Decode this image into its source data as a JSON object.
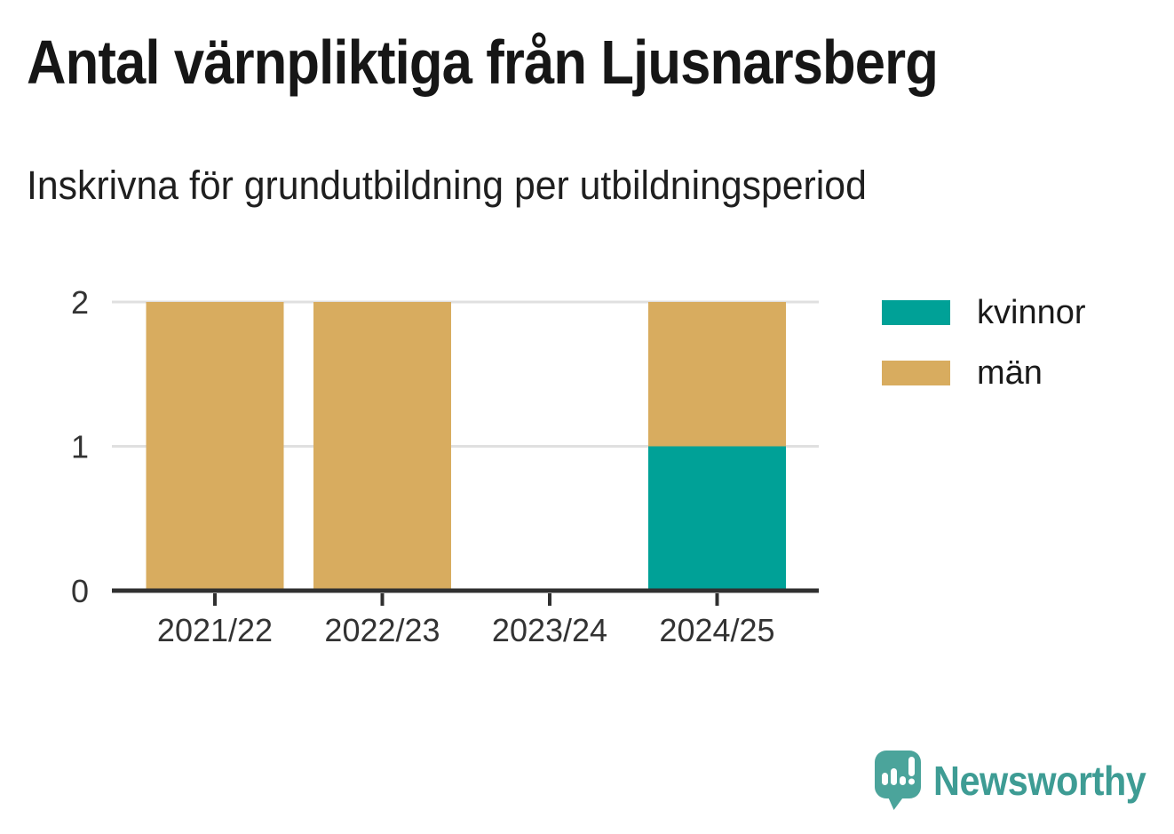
{
  "chart_data": {
    "type": "bar",
    "stacked": true,
    "title": "Antal värnpliktiga från Ljusnarsberg",
    "subtitle": "Inskrivna för grundutbildning per utbildningsperiod",
    "categories": [
      "2021/22",
      "2022/23",
      "2023/24",
      "2024/25"
    ],
    "series": [
      {
        "name": "kvinnor",
        "color": "#00A197",
        "values": [
          0,
          0,
          0,
          1
        ]
      },
      {
        "name": "män",
        "color": "#D8AC5F",
        "values": [
          2,
          2,
          0,
          1
        ]
      }
    ],
    "ylim": [
      0,
      2
    ],
    "yticks": [
      0,
      1,
      2
    ],
    "grid": "horizontal-only",
    "legend_position": "right-top",
    "axis_color": "#303030",
    "gridline_color": "#E0E0E0",
    "tick_label_color": "#333333"
  },
  "branding": {
    "logo_text": "Newsworthy",
    "logo_icon": "newsworthy-speech-bubble-chart-icon",
    "logo_icon_color": "#4BA49B",
    "logo_text_color": "#3E9C94"
  }
}
